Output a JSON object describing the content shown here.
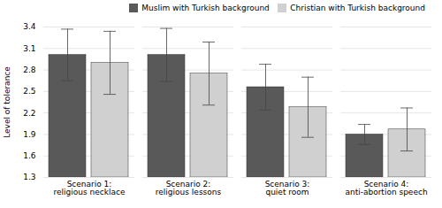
{
  "chart_data": {
    "type": "bar",
    "categories": [
      "Scenario 1:\nreligious necklace",
      "Scenario 2:\nreligious lessons",
      "Scenario 3:\nquiet room",
      "Scenario 4:\nanti-abortion speech"
    ],
    "series": [
      {
        "name": "Muslim with Turkish background",
        "color": "#595959",
        "values": [
          3.01,
          3.01,
          2.56,
          1.9
        ],
        "errors": [
          0.36,
          0.37,
          0.32,
          0.14
        ]
      },
      {
        "name": "Christian with Turkish background",
        "color": "#d0d0d0",
        "values": [
          2.9,
          2.75,
          2.28,
          1.97
        ],
        "errors": [
          0.44,
          0.44,
          0.42,
          0.3
        ]
      }
    ],
    "ylabel": "Level of tolerance",
    "ylim": [
      1.3,
      3.4
    ],
    "yticks": [
      1.3,
      1.6,
      1.9,
      2.2,
      2.5,
      2.8,
      3.1,
      3.4
    ],
    "grid": true,
    "legend": "upper right"
  }
}
